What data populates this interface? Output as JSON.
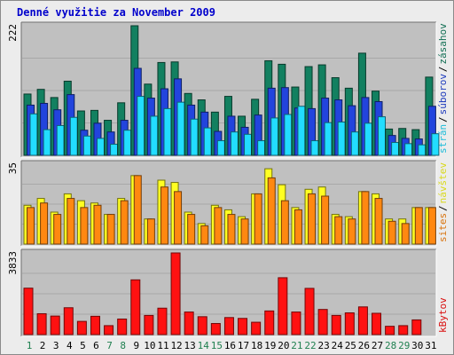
{
  "title": "Denné využitie za November 2009",
  "chart_data": [
    {
      "type": "bar",
      "panel": "top",
      "categories": [
        "1",
        "2",
        "3",
        "4",
        "5",
        "6",
        "7",
        "8",
        "9",
        "10",
        "11",
        "12",
        "13",
        "14",
        "15",
        "16",
        "17",
        "18",
        "19",
        "20",
        "21",
        "22",
        "23",
        "24",
        "25",
        "26",
        "27",
        "28",
        "29",
        "30",
        "31"
      ],
      "weekend_days": [
        "1",
        "7",
        "8",
        "14",
        "15",
        "21",
        "22",
        "28",
        "29"
      ],
      "ymax_label": "222",
      "ylim": [
        0,
        222
      ],
      "series": [
        {
          "name": "zásahov",
          "color": "#128060",
          "values": [
            105,
            113,
            99,
            127,
            76,
            77,
            60,
            90,
            222,
            122,
            159,
            160,
            106,
            95,
            74,
            101,
            67,
            96,
            162,
            156,
            117,
            152,
            155,
            133,
            115,
            175,
            110,
            45,
            46,
            44,
            134
          ]
        },
        {
          "name": "súborov",
          "color": "#2244dd",
          "values": [
            86,
            89,
            78,
            104,
            43,
            55,
            40,
            60,
            149,
            98,
            114,
            131,
            86,
            74,
            41,
            67,
            48,
            69,
            115,
            116,
            81,
            80,
            98,
            95,
            85,
            99,
            92,
            34,
            29,
            28,
            84
          ]
        },
        {
          "name": "strán",
          "color": "#22ddff",
          "values": [
            71,
            44,
            51,
            65,
            33,
            29,
            19,
            43,
            101,
            67,
            80,
            91,
            62,
            47,
            25,
            40,
            36,
            25,
            64,
            70,
            84,
            25,
            56,
            57,
            40,
            55,
            66,
            22,
            20,
            18,
            37
          ]
        }
      ]
    },
    {
      "type": "bar",
      "panel": "middle",
      "categories": [
        "1",
        "2",
        "3",
        "4",
        "5",
        "6",
        "7",
        "8",
        "9",
        "10",
        "11",
        "12",
        "13",
        "14",
        "15",
        "16",
        "17",
        "18",
        "19",
        "20",
        "21",
        "22",
        "23",
        "24",
        "25",
        "26",
        "27",
        "28",
        "29",
        "30",
        "31"
      ],
      "ymax_label": "35",
      "ylim": [
        0,
        35
      ],
      "series": [
        {
          "name": "návštev",
          "color": "#ffff22",
          "values": [
            17,
            20,
            14,
            22,
            19,
            18,
            13,
            20,
            30,
            11,
            28,
            27,
            14,
            9,
            17,
            15,
            12,
            22,
            33,
            26,
            16,
            24,
            25,
            13,
            12,
            23,
            22,
            11,
            11,
            16,
            16
          ]
        },
        {
          "name": "sites",
          "color": "#ff8811",
          "values": [
            16,
            18,
            13,
            20,
            16,
            17,
            13,
            19,
            30,
            11,
            25,
            23,
            13,
            8,
            16,
            13,
            11,
            22,
            29,
            19,
            15,
            22,
            21,
            12,
            11,
            23,
            20,
            10,
            9,
            16,
            16
          ]
        }
      ]
    },
    {
      "type": "bar",
      "panel": "bottom",
      "categories": [
        "1",
        "2",
        "3",
        "4",
        "5",
        "6",
        "7",
        "8",
        "9",
        "10",
        "11",
        "12",
        "13",
        "14",
        "15",
        "16",
        "17",
        "18",
        "19",
        "20",
        "21",
        "22",
        "23",
        "24",
        "25",
        "26",
        "27",
        "28",
        "29",
        "30",
        "31"
      ],
      "ymax_label": "3833",
      "ylim": [
        0,
        3833
      ],
      "series": [
        {
          "name": "kBytov",
          "color": "#ff1111",
          "values": [
            2180,
            980,
            870,
            1260,
            620,
            860,
            420,
            730,
            2570,
            900,
            1240,
            3833,
            1060,
            840,
            520,
            800,
            760,
            580,
            1110,
            2670,
            1060,
            2170,
            1180,
            900,
            1020,
            1300,
            1000,
            390,
            420,
            690,
            0
          ]
        }
      ]
    }
  ]
}
